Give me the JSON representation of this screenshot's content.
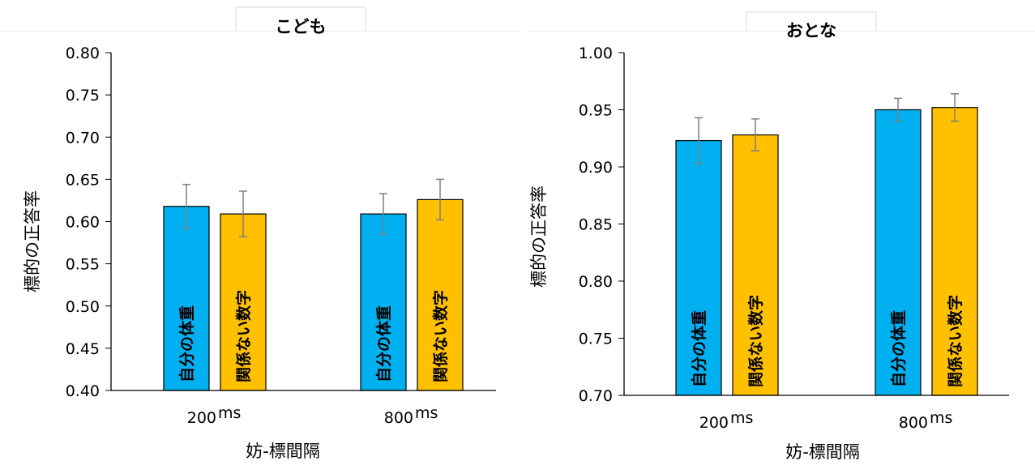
{
  "colors": {
    "series1": "#00b0f0",
    "series2": "#ffc000",
    "bar_edge": "#000000",
    "error_bar": "#7f7f7f",
    "axis": "#000000",
    "tab_border": "#d9d9d9"
  },
  "chart_data": [
    {
      "type": "bar",
      "title": "こども",
      "xlabel": "妨-標間隔",
      "ylabel": "標的の正答率",
      "ylim": [
        0.4,
        0.8
      ],
      "yticks": [
        "0.80",
        "0.75",
        "0.70",
        "0.65",
        "0.60",
        "0.55",
        "0.50",
        "0.45",
        "0.40"
      ],
      "categories": [
        "200",
        "800"
      ],
      "category_unit": "ms",
      "series": [
        {
          "name": "自分の体重",
          "values": [
            0.618,
            0.609
          ],
          "errors": [
            0.026,
            0.024
          ]
        },
        {
          "name": "関係ない数字",
          "values": [
            0.609,
            0.626
          ],
          "errors": [
            0.027,
            0.024
          ]
        }
      ]
    },
    {
      "type": "bar",
      "title": "おとな",
      "xlabel": "妨-標間隔",
      "ylabel": "標的の正答率",
      "ylim": [
        0.7,
        1.0
      ],
      "yticks": [
        "1.00",
        "0.95",
        "0.90",
        "0.85",
        "0.80",
        "0.75",
        "0.70"
      ],
      "categories": [
        "200",
        "800"
      ],
      "category_unit": "ms",
      "series": [
        {
          "name": "自分の体重",
          "values": [
            0.923,
            0.95
          ],
          "errors": [
            0.02,
            0.01
          ]
        },
        {
          "name": "関係ない数字",
          "values": [
            0.928,
            0.952
          ],
          "errors": [
            0.014,
            0.012
          ]
        }
      ]
    }
  ]
}
